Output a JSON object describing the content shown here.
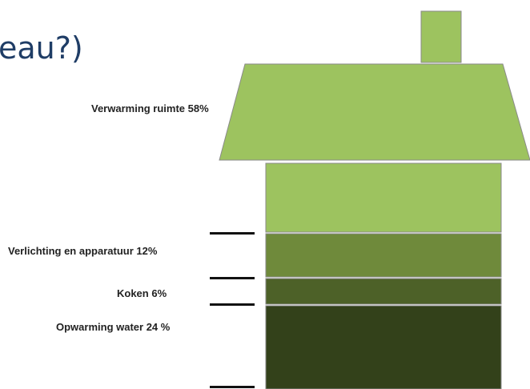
{
  "title_fragment": "eau?)",
  "segments": [
    {
      "label": "Verwarming ruimte 58%",
      "percent": 58,
      "color": "#9dc35f"
    },
    {
      "label": "Verlichting en apparatuur 12%",
      "percent": 12,
      "color": "#6f8a3b"
    },
    {
      "label": "Koken 6%",
      "percent": 6,
      "color": "#4d6128"
    },
    {
      "label": "Opwarming water 24 %",
      "percent": 24,
      "color": "#33411a"
    }
  ],
  "colors": {
    "roof": "#9dc35f",
    "chimney": "#9dc35f",
    "outline": "#8a8a8a",
    "title": "#1f3d66"
  }
}
